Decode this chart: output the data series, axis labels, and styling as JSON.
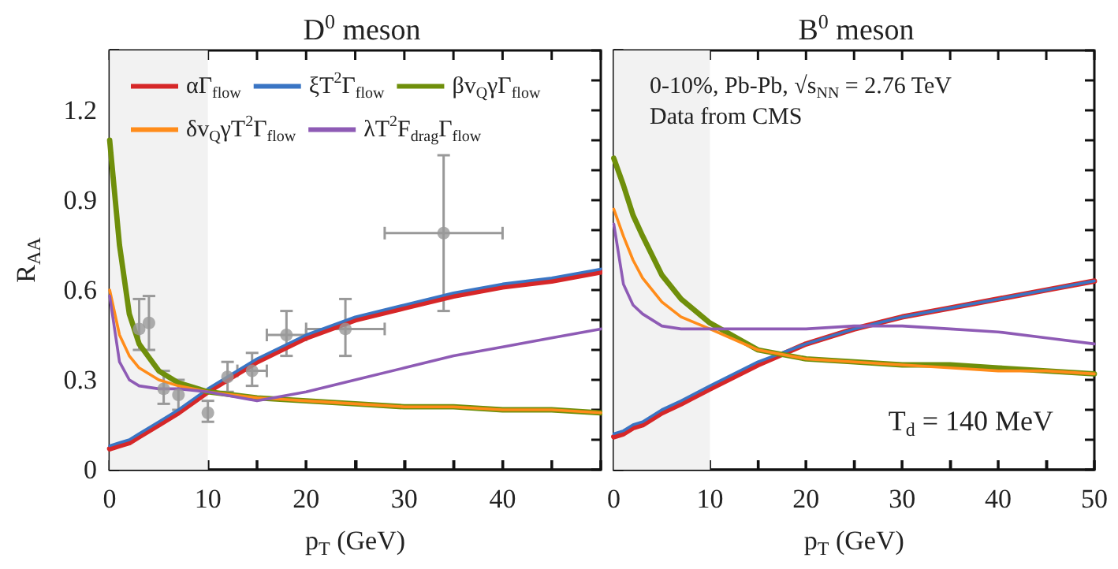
{
  "chart_data": [
    {
      "type": "line",
      "title": "D$^{0}$ meson",
      "xlabel": "p$_{T}$ (GeV)",
      "ylabel": "R$_{AA}$",
      "x": [
        0,
        1,
        2,
        3,
        5,
        7,
        10,
        15,
        20,
        25,
        30,
        35,
        40,
        45,
        50
      ],
      "series": [
        {
          "name": "αΓ$_{flow}$",
          "color": "#d62728",
          "values": [
            0.07,
            0.08,
            0.09,
            0.11,
            0.15,
            0.19,
            0.26,
            0.36,
            0.44,
            0.5,
            0.54,
            0.58,
            0.61,
            0.63,
            0.66
          ]
        },
        {
          "name": "ξT$^{2}$Γ$_{flow}$",
          "color": "#3a75c4",
          "values": [
            0.08,
            0.09,
            0.1,
            0.12,
            0.16,
            0.2,
            0.27,
            0.37,
            0.45,
            0.51,
            0.55,
            0.59,
            0.62,
            0.64,
            0.67
          ]
        },
        {
          "name": "βv$_{Q}$γΓ$_{flow}$",
          "color": "#6f8f0b",
          "values": [
            1.1,
            0.75,
            0.52,
            0.42,
            0.33,
            0.29,
            0.26,
            0.24,
            0.23,
            0.22,
            0.21,
            0.21,
            0.2,
            0.2,
            0.19
          ]
        },
        {
          "name": "δv$_{Q}$γT$^{2}$Γ$_{flow}$",
          "color": "#ff8c1a",
          "values": [
            0.6,
            0.45,
            0.38,
            0.34,
            0.3,
            0.28,
            0.26,
            0.24,
            0.23,
            0.22,
            0.21,
            0.21,
            0.2,
            0.2,
            0.19
          ]
        },
        {
          "name": "λT$^{2}$F$_{drag}$Γ$_{flow}$",
          "color": "#8e5bb5",
          "values": [
            0.58,
            0.36,
            0.3,
            0.28,
            0.27,
            0.27,
            0.26,
            0.23,
            0.26,
            0.3,
            0.34,
            0.38,
            0.41,
            0.44,
            0.47
          ]
        },
        {
          "type": "scatter",
          "color": "#999999",
          "marker": "circle",
          "x": [
            3,
            4,
            5.5,
            7,
            10,
            12,
            14.5,
            18,
            24,
            34
          ],
          "values": [
            0.47,
            0.49,
            0.27,
            0.25,
            0.19,
            0.31,
            0.33,
            0.45,
            0.47,
            0.79
          ],
          "errors": [
            [
              0.4,
              0.57
            ],
            [
              0.4,
              0.58
            ],
            [
              0.22,
              0.33
            ],
            [
              0.2,
              0.3
            ],
            [
              0.16,
              0.23
            ],
            [
              0.26,
              0.36
            ],
            [
              0.28,
              0.39
            ],
            [
              0.38,
              0.53
            ],
            [
              0.38,
              0.57
            ],
            [
              0.53,
              1.05
            ]
          ],
          "xerrors": [
            null,
            null,
            null,
            null,
            null,
            null,
            [
              13,
              16
            ],
            [
              16,
              20
            ],
            [
              20,
              28
            ],
            [
              28,
              40
            ]
          ]
        }
      ],
      "bands": [
        {
          "axis": "x",
          "from": 0,
          "to": 10,
          "color": "#f2f2f2"
        }
      ],
      "xlim": [
        0,
        50
      ],
      "xticks": [
        0,
        {
          "value": 5,
          "label": null
        },
        10,
        {
          "value": 15,
          "label": null
        },
        20,
        {
          "value": 25,
          "label": null
        },
        30,
        {
          "value": 35,
          "label": null
        },
        40,
        {
          "value": 45,
          "label": null
        },
        {
          "value": 50,
          "label": null
        }
      ],
      "ylim": [
        0,
        1.4
      ],
      "yticks": [
        0,
        {
          "value": 0.1,
          "label": null
        },
        {
          "value": 0.2,
          "label": null
        },
        0.3,
        {
          "value": 0.4,
          "label": null
        },
        {
          "value": 0.5,
          "label": null
        },
        0.6,
        {
          "value": 0.7,
          "label": null
        },
        {
          "value": 0.8,
          "label": null
        },
        0.9,
        {
          "value": 1.0,
          "label": null
        },
        {
          "value": 1.1,
          "label": null
        },
        1.2,
        {
          "value": 1.3,
          "label": null
        },
        {
          "value": 1.4,
          "label": null
        }
      ],
      "legend": "top left",
      "grid": false,
      "marker": "none",
      "line_style": "solid"
    },
    {
      "type": "line",
      "title": "B$^{0}$ meson",
      "xlabel": "p$_{T}$ (GeV)",
      "annotations": [
        "0-10%, Pb-Pb, √s$_{NN}$ = 2.76 TeV",
        "Data from CMS",
        "T$_{d}$ = 140 MeV"
      ],
      "x": [
        0,
        1,
        2,
        3,
        5,
        7,
        10,
        15,
        20,
        25,
        30,
        35,
        40,
        45,
        50
      ],
      "series": [
        {
          "color": "#d62728",
          "values": [
            0.11,
            0.12,
            0.14,
            0.15,
            0.19,
            0.22,
            0.27,
            0.35,
            0.42,
            0.47,
            0.51,
            0.54,
            0.57,
            0.6,
            0.63
          ]
        },
        {
          "color": "#3a75c4",
          "values": [
            0.12,
            0.13,
            0.15,
            0.16,
            0.2,
            0.23,
            0.28,
            0.36,
            0.42,
            0.47,
            0.51,
            0.54,
            0.57,
            0.6,
            0.63
          ]
        },
        {
          "color": "#6f8f0b",
          "values": [
            1.04,
            0.95,
            0.85,
            0.78,
            0.65,
            0.57,
            0.49,
            0.4,
            0.37,
            0.36,
            0.35,
            0.35,
            0.34,
            0.33,
            0.32
          ]
        },
        {
          "color": "#ff8c1a",
          "values": [
            0.87,
            0.78,
            0.7,
            0.64,
            0.56,
            0.51,
            0.47,
            0.4,
            0.37,
            0.36,
            0.35,
            0.34,
            0.33,
            0.33,
            0.32
          ]
        },
        {
          "color": "#8e5bb5",
          "values": [
            0.82,
            0.62,
            0.55,
            0.52,
            0.48,
            0.47,
            0.47,
            0.47,
            0.47,
            0.48,
            0.48,
            0.47,
            0.46,
            0.44,
            0.42
          ]
        }
      ],
      "bands": [
        {
          "axis": "x",
          "from": 0,
          "to": 10,
          "color": "#f2f2f2"
        }
      ],
      "xlim": [
        0,
        50
      ],
      "xticks": [
        0,
        {
          "value": 5,
          "label": null
        },
        10,
        {
          "value": 15,
          "label": null
        },
        20,
        {
          "value": 25,
          "label": null
        },
        30,
        {
          "value": 35,
          "label": null
        },
        40,
        {
          "value": 45,
          "label": null
        },
        50
      ],
      "ylim": [
        0,
        1.4
      ],
      "yticks": [
        0,
        {
          "value": 0.1,
          "label": null
        },
        {
          "value": 0.2,
          "label": null
        },
        0.3,
        {
          "value": 0.4,
          "label": null
        },
        {
          "value": 0.5,
          "label": null
        },
        0.6,
        {
          "value": 0.7,
          "label": null
        },
        {
          "value": 0.8,
          "label": null
        },
        0.9,
        {
          "value": 1.0,
          "label": null
        },
        {
          "value": 1.1,
          "label": null
        },
        1.2,
        {
          "value": 1.3,
          "label": null
        },
        {
          "value": 1.4,
          "label": null
        }
      ],
      "tick_labels": "x",
      "legend": false,
      "grid": false,
      "marker": "none",
      "line_style": "solid"
    }
  ]
}
